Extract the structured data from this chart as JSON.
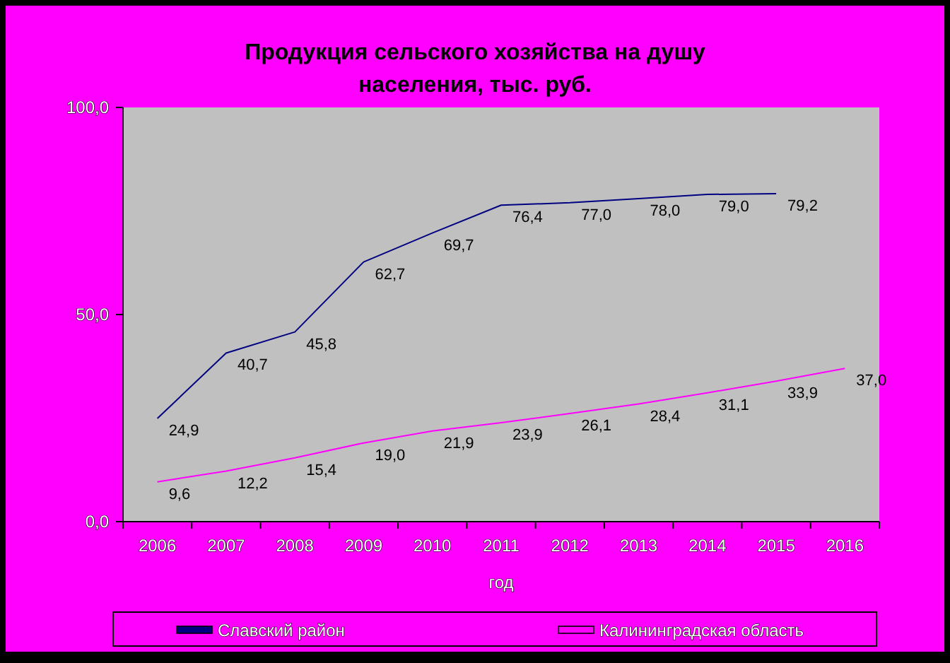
{
  "chart_data": {
    "type": "line",
    "title": "Продукция сельского хозяйства на душу населения, тыс. руб.",
    "xlabel": "год",
    "categories": [
      "2006",
      "2007",
      "2008",
      "2009",
      "2010",
      "2011",
      "2012",
      "2013",
      "2014",
      "2015",
      "2016"
    ],
    "series": [
      {
        "name": "Славский район",
        "color": "#000080",
        "values": [
          24.9,
          40.7,
          45.8,
          62.7,
          69.7,
          76.4,
          77.0,
          78.0,
          79.0,
          79.2,
          null
        ],
        "value_labels": [
          "24,9",
          "40,7",
          "45,8",
          "62,7",
          "69,7",
          "76,4",
          "77,0",
          "78,0",
          "79,0",
          "79,2",
          null
        ]
      },
      {
        "name": "Калининградская область",
        "color": "#ff00ff",
        "values": [
          9.6,
          12.2,
          15.4,
          19.0,
          21.9,
          23.9,
          26.1,
          28.4,
          31.1,
          33.9,
          37.0
        ],
        "value_labels": [
          "9,6",
          "12,2",
          "15,4",
          "19,0",
          "21,9",
          "23,9",
          "26,1",
          "28,4",
          "31,1",
          "33,9",
          "37,0"
        ]
      }
    ],
    "ylim": [
      0,
      100
    ],
    "yticks": [
      {
        "value": 0,
        "label": "0,0"
      },
      {
        "value": 50,
        "label": "50,0"
      },
      {
        "value": 100,
        "label": "100,0"
      }
    ],
    "grid": false,
    "legend": "bottom",
    "marker": "none",
    "line_style": "solid"
  }
}
